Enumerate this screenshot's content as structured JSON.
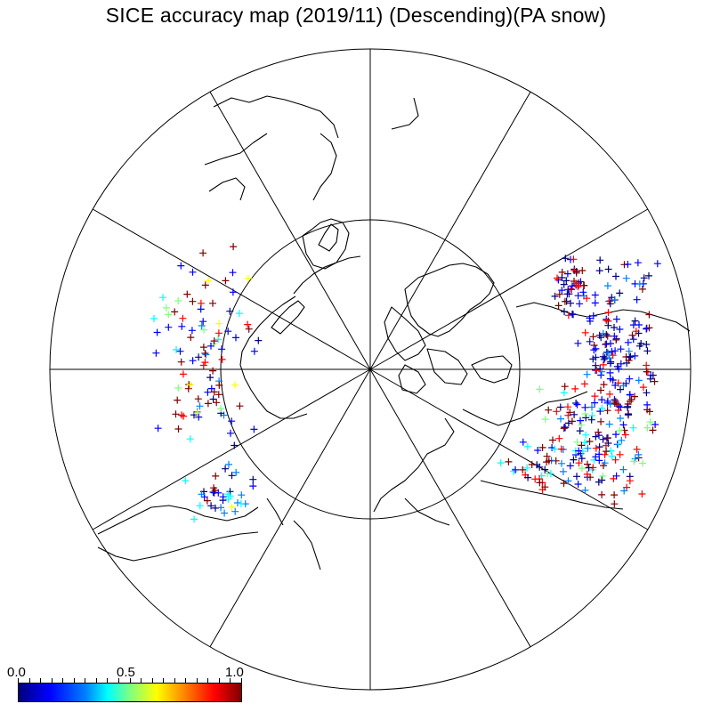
{
  "title": "SICE accuracy map (2019/11)  (Descending)(PA snow)",
  "colorbar": {
    "min_label": "0.0",
    "mid_label": "0.5",
    "max_label": "1.0",
    "colormap": "jet",
    "colors": [
      "#00007f",
      "#0000ff",
      "#007fff",
      "#00ffff",
      "#7fff7f",
      "#ffff00",
      "#ff7f00",
      "#ff0000",
      "#7f0000"
    ]
  },
  "map": {
    "projection": "north-polar-stereographic",
    "latitude_circle_count": 2,
    "meridian_line_count": 12,
    "coastline_color": "#000000"
  }
}
